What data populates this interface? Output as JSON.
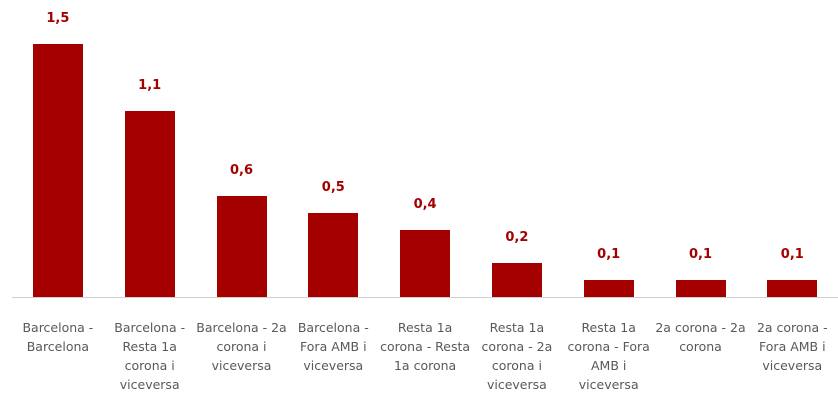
{
  "chart_data": {
    "type": "bar",
    "categories": [
      "Barcelona - Barcelona",
      "Barcelona - Resta 1a corona i viceversa",
      "Barcelona - 2a corona i viceversa",
      "Barcelona - Fora AMB i viceversa",
      "Resta 1a corona - Resta 1a corona",
      "Resta 1a corona - 2a corona i viceversa",
      "Resta 1a corona - Fora AMB i viceversa",
      "2a corona - 2a corona",
      "2a corona - Fora AMB i viceversa"
    ],
    "values": [
      1.5,
      1.1,
      0.6,
      0.5,
      0.4,
      0.2,
      0.1,
      0.1,
      0.1
    ],
    "value_labels": [
      "1,5",
      "1,1",
      "0,6",
      "0,5",
      "0,4",
      "0,2",
      "0,1",
      "0,1",
      "0,1"
    ],
    "color": "#a50000"
  }
}
